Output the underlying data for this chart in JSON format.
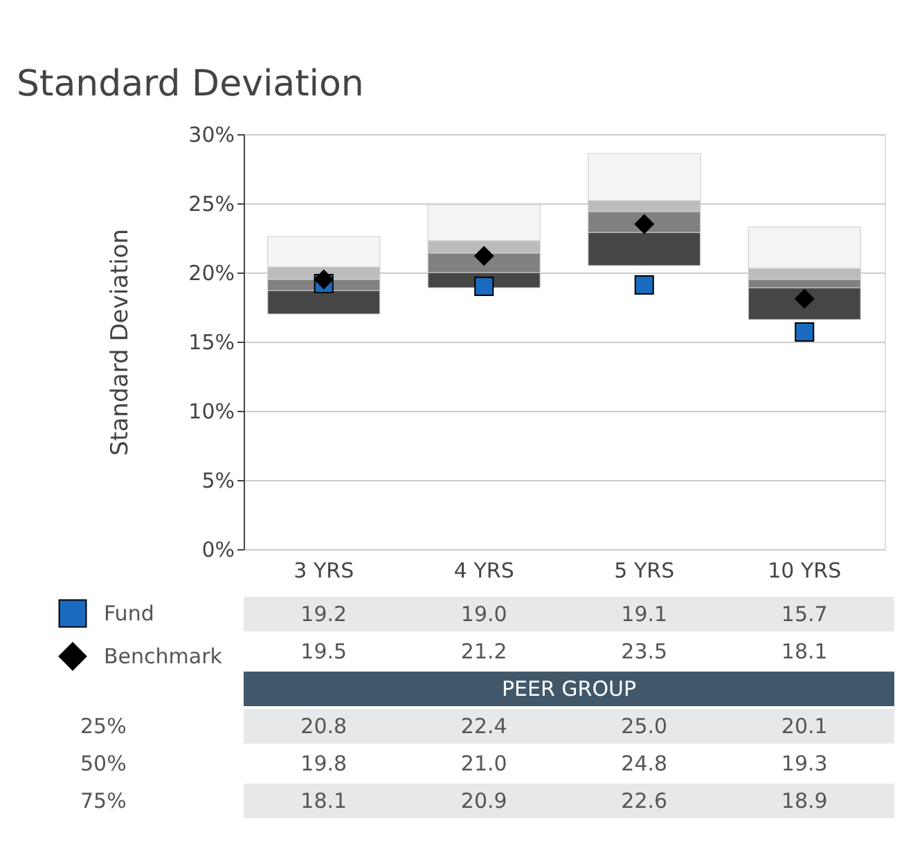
{
  "chart_data": {
    "type": "bar",
    "title": "Standard Deviation",
    "ylabel": "Standard Deviation",
    "categories": [
      "3 YRS",
      "4 YRS",
      "5 YRS",
      "10 YRS"
    ],
    "series": [
      {
        "color": "#464646",
        "base": [
          17.0,
          18.9,
          20.5,
          16.6
        ],
        "values": [
          1.7,
          1.1,
          2.4,
          2.3
        ]
      },
      {
        "color": "#808080",
        "base": [
          18.7,
          20.0,
          22.9,
          18.9
        ],
        "values": [
          0.8,
          1.4,
          1.5,
          0.6
        ]
      },
      {
        "color": "#bcbcbc",
        "base": [
          19.5,
          21.4,
          24.4,
          19.5
        ],
        "values": [
          0.9,
          0.9,
          0.8,
          0.8
        ]
      },
      {
        "color": "#f4f4f4",
        "base": [
          20.4,
          22.3,
          25.2,
          20.3
        ],
        "values": [
          2.2,
          2.6,
          3.4,
          3.0
        ]
      },
      {
        "name": "Fund",
        "type": "scatter",
        "marker": "square",
        "color": "#1a6bbf",
        "values": [
          19.2,
          19.0,
          19.1,
          15.7
        ],
        "value_labels": [
          "19.2",
          "19.0",
          "19.1",
          "15.7"
        ]
      },
      {
        "name": "Benchmark",
        "type": "scatter",
        "marker": "diamond",
        "color": "#000000",
        "values": [
          19.5,
          21.2,
          23.5,
          18.1
        ],
        "value_labels": [
          "19.5",
          "21.2",
          "23.5",
          "18.1"
        ]
      }
    ],
    "ylim": [
      0,
      30
    ],
    "yticks": [
      {
        "value": 0,
        "label": "0%"
      },
      {
        "value": 5,
        "label": "5%"
      },
      {
        "value": 10,
        "label": "10%"
      },
      {
        "value": 15,
        "label": "15%"
      },
      {
        "value": 20,
        "label": "20%"
      },
      {
        "value": 25,
        "label": "25%"
      },
      {
        "value": 30,
        "label": "30%"
      }
    ],
    "grid": "y",
    "legend": "bottom left",
    "annotations": [
      "PEER GROUP",
      "25%",
      "20.8",
      "22.4",
      "25.0",
      "20.1",
      "50%",
      "19.8",
      "21.0",
      "24.8",
      "19.3",
      "75%",
      "18.1",
      "20.9",
      "22.6",
      "18.9"
    ]
  }
}
